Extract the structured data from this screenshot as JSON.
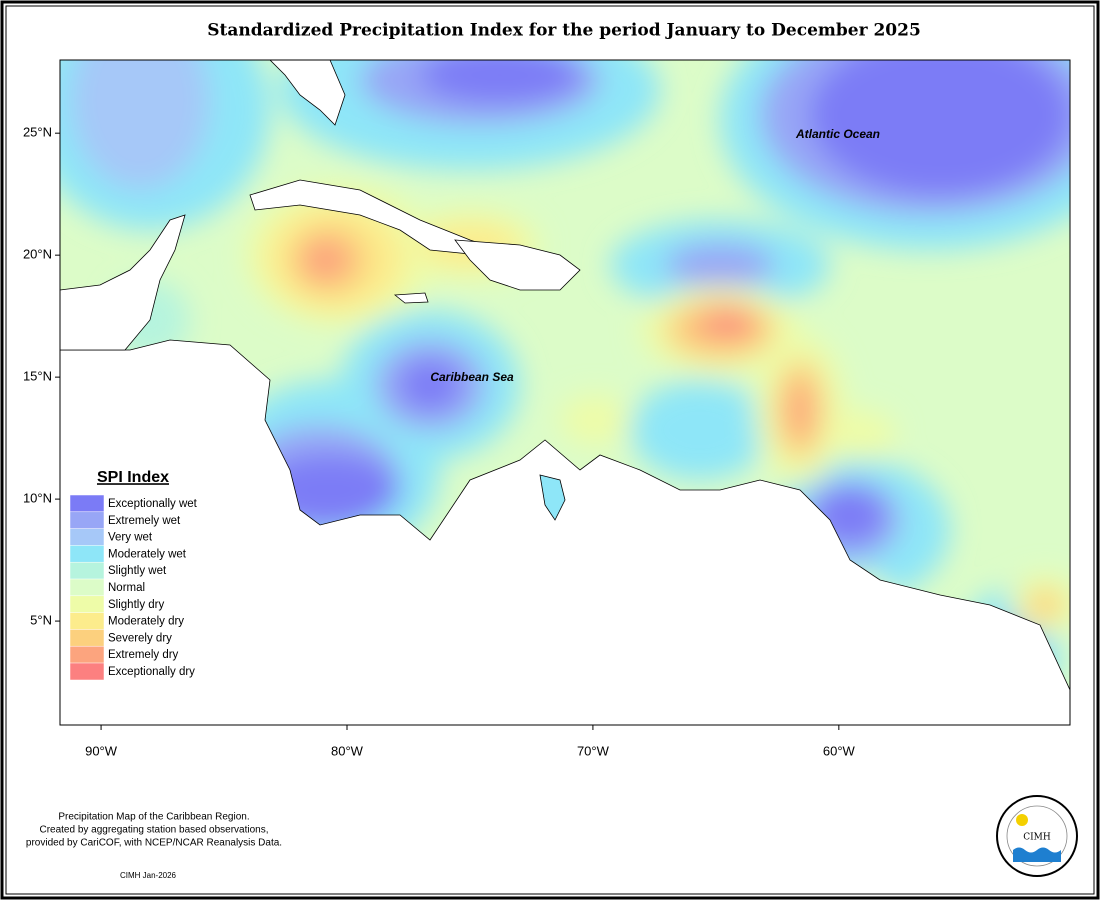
{
  "title": "Standardized Precipitation Index for the period January to December 2025",
  "map": {
    "xlim": [
      -91.67,
      -50.6
    ],
    "ylim": [
      0.74,
      28.0
    ],
    "xticks": [
      {
        "value": -90,
        "label": "90°W"
      },
      {
        "value": -80,
        "label": "80°W"
      },
      {
        "value": -70,
        "label": "70°W"
      },
      {
        "value": -60,
        "label": "60°W"
      }
    ],
    "yticks": [
      {
        "value": 25,
        "label": "25°N"
      },
      {
        "value": 20,
        "label": "20°N"
      },
      {
        "value": 15,
        "label": "15°N"
      },
      {
        "value": 10,
        "label": "10°N"
      },
      {
        "value": 5,
        "label": "5°N"
      }
    ],
    "labels": [
      "Atlantic Ocean",
      "Caribbean Sea"
    ]
  },
  "legend": {
    "title": "SPI Index",
    "items": [
      {
        "label": "Exceptionally wet",
        "color": "#7b7bf6"
      },
      {
        "label": "Extremely wet",
        "color": "#98a6f6"
      },
      {
        "label": "Very wet",
        "color": "#a6c8f8"
      },
      {
        "label": "Moderately wet",
        "color": "#8ee6f8"
      },
      {
        "label": "Slightly wet",
        "color": "#b6f4de"
      },
      {
        "label": "Normal",
        "color": "#dcfcc8"
      },
      {
        "label": "Slightly dry",
        "color": "#eefca8"
      },
      {
        "label": "Moderately dry",
        "color": "#fcec8c"
      },
      {
        "label": "Severely dry",
        "color": "#fcd07e"
      },
      {
        "label": "Extremely dry",
        "color": "#fca47e"
      },
      {
        "label": "Exceptionally dry",
        "color": "#fc8080"
      }
    ]
  },
  "footer": {
    "lines": [
      "Precipitation Map of the Caribbean Region.",
      "Created by aggregating station based observations,",
      "provided by CariCOF, with NCEP/NCAR Reanalysis Data."
    ],
    "credit": "CIMH Jan-2026"
  },
  "logo": {
    "text": "CIMH"
  }
}
